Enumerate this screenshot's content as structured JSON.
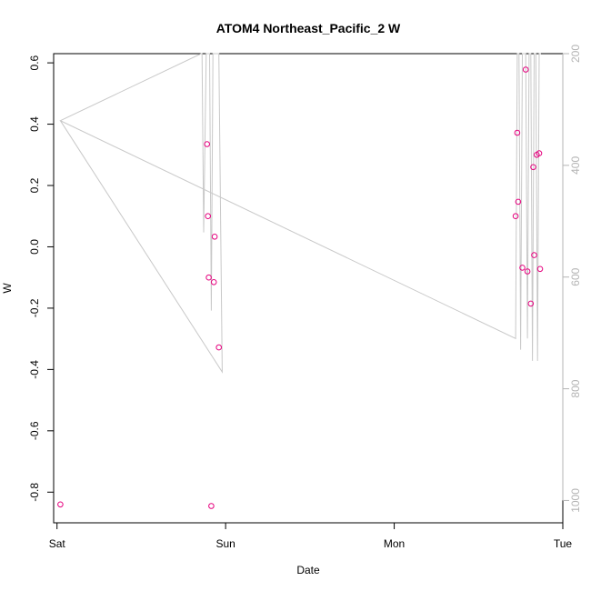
{
  "chart_data": {
    "type": "scatter",
    "title": "ATOM4 Northeast_Pacific_2 W",
    "xlabel": "Date",
    "ylabel": "W",
    "x_ticks": [
      "Sat",
      "Sun",
      "Mon",
      "Tue"
    ],
    "xlim": [
      -0.02,
      3.0
    ],
    "ylim": [
      -0.9,
      0.63
    ],
    "y_ticks": [
      -0.8,
      -0.6,
      -0.4,
      -0.2,
      0.0,
      0.2,
      0.4,
      0.6
    ],
    "right_axis": {
      "label": "",
      "ylim_reversed": [
        200,
        1040
      ],
      "ticks": [
        200,
        400,
        600,
        800,
        1000
      ],
      "color": "#b4b4b4"
    },
    "series": [
      {
        "kind": "points",
        "color": "#e6007e",
        "points": [
          {
            "x": 0.02,
            "y": -0.84
          },
          {
            "x": 0.89,
            "y": 0.335
          },
          {
            "x": 0.895,
            "y": 0.1
          },
          {
            "x": 0.9,
            "y": -0.1
          },
          {
            "x": 0.915,
            "y": -0.845
          },
          {
            "x": 0.93,
            "y": -0.115
          },
          {
            "x": 0.935,
            "y": 0.033
          },
          {
            "x": 0.96,
            "y": -0.328
          },
          {
            "x": 2.72,
            "y": 0.1
          },
          {
            "x": 2.73,
            "y": 0.372
          },
          {
            "x": 2.735,
            "y": 0.147
          },
          {
            "x": 2.76,
            "y": -0.068
          },
          {
            "x": 2.78,
            "y": 0.578
          },
          {
            "x": 2.79,
            "y": -0.08
          },
          {
            "x": 2.81,
            "y": -0.185
          },
          {
            "x": 2.825,
            "y": 0.26
          },
          {
            "x": 2.83,
            "y": -0.027
          },
          {
            "x": 2.845,
            "y": 0.3
          },
          {
            "x": 2.86,
            "y": 0.305
          },
          {
            "x": 2.865,
            "y": -0.072
          }
        ]
      },
      {
        "kind": "depth-line",
        "color": "#c8c8c8",
        "points": [
          {
            "x": 0.02,
            "y": 320
          },
          {
            "x": 0.98,
            "y": 770
          },
          {
            "x": 0.96,
            "y": 200
          },
          {
            "x": 0.925,
            "y": 200
          },
          {
            "x": 0.915,
            "y": 660
          },
          {
            "x": 0.905,
            "y": 200
          },
          {
            "x": 0.885,
            "y": 200
          },
          {
            "x": 0.87,
            "y": 520
          },
          {
            "x": 0.86,
            "y": 200
          },
          {
            "x": 0.855,
            "y": 200
          },
          {
            "x": 0.02,
            "y": 320
          },
          {
            "x": 2.72,
            "y": 710
          },
          {
            "x": 2.73,
            "y": 200
          },
          {
            "x": 2.74,
            "y": 200
          },
          {
            "x": 2.75,
            "y": 730
          },
          {
            "x": 2.76,
            "y": 200
          },
          {
            "x": 2.78,
            "y": 200
          },
          {
            "x": 2.79,
            "y": 710
          },
          {
            "x": 2.8,
            "y": 200
          },
          {
            "x": 2.81,
            "y": 200
          },
          {
            "x": 2.82,
            "y": 750
          },
          {
            "x": 2.83,
            "y": 200
          },
          {
            "x": 2.84,
            "y": 200
          },
          {
            "x": 2.85,
            "y": 750
          },
          {
            "x": 2.86,
            "y": 200
          },
          {
            "x": 2.87,
            "y": 200
          }
        ]
      }
    ]
  }
}
